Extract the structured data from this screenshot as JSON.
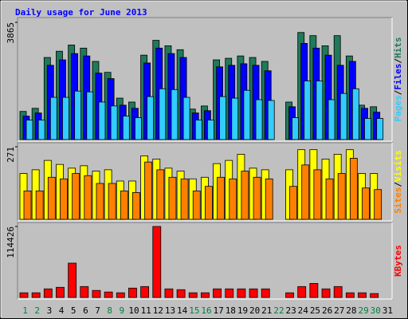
{
  "chart_data": [
    {
      "type": "bar",
      "title": "Daily usage for June 2013",
      "ylim": [
        0,
        3865
      ],
      "yticks": [
        3865
      ],
      "legend_separator": "/",
      "bar_width": 8,
      "bar_step": 4,
      "series": [
        {
          "name": "Hits",
          "color": "#1f7a5a",
          "values": [
            928,
            1031,
            2706,
            2912,
            3118,
            3015,
            2577,
            2216,
            1366,
            1237,
            2783,
            3272,
            3092,
            2963,
            1005,
            1108,
            2628,
            2680,
            2757,
            2706,
            2577,
            0,
            1237,
            3530,
            3427,
            3092,
            3427,
            2757,
            1134,
            1082,
            0
          ]
        },
        {
          "name": "Files",
          "color": "#0000ff",
          "values": [
            773,
            876,
            2448,
            2628,
            2835,
            2757,
            2190,
            2010,
            1134,
            1031,
            2525,
            3015,
            2835,
            2706,
            876,
            953,
            2397,
            2448,
            2500,
            2448,
            2268,
            0,
            1082,
            3170,
            3015,
            2783,
            2448,
            2577,
            1031,
            902,
            0
          ]
        },
        {
          "name": "Pages",
          "color": "#33ccff",
          "values": [
            644,
            644,
            1392,
            1392,
            1598,
            1572,
            1237,
            1108,
            773,
            722,
            1417,
            1675,
            1649,
            1392,
            644,
            644,
            1417,
            1366,
            1624,
            1314,
            1289,
            0,
            722,
            1933,
            1933,
            1314,
            1520,
            1675,
            696,
            696,
            0
          ]
        }
      ]
    },
    {
      "type": "bar",
      "ylim": [
        0,
        271
      ],
      "yticks": [
        271
      ],
      "legend_separator": "/",
      "bar_width": 9,
      "bar_step": 5,
      "series": [
        {
          "name": "Visits",
          "color": "#ffff00",
          "values": [
            171,
            185,
            220,
            205,
            191,
            200,
            180,
            185,
            143,
            143,
            237,
            225,
            191,
            180,
            151,
            157,
            208,
            220,
            243,
            191,
            185,
            0,
            185,
            260,
            260,
            225,
            243,
            260,
            171,
            171,
            0
          ]
        },
        {
          "name": "Sites",
          "color": "#ff8000",
          "values": [
            106,
            106,
            157,
            151,
            171,
            163,
            134,
            134,
            106,
            100,
            214,
            185,
            157,
            151,
            106,
            123,
            157,
            151,
            180,
            157,
            151,
            0,
            123,
            203,
            185,
            151,
            171,
            228,
            117,
            111,
            0
          ]
        }
      ]
    },
    {
      "type": "bar",
      "ylim": [
        0,
        114426
      ],
      "yticks": [
        114426
      ],
      "bar_width": 10,
      "bar_step": 0,
      "series": [
        {
          "name": "KBytes",
          "color": "#ff0000",
          "values": [
            7542,
            7542,
            13827,
            16341,
            55314,
            17598,
            11313,
            8799,
            7542,
            15084,
            17598,
            114426,
            13827,
            12570,
            7542,
            7542,
            13827,
            13827,
            13827,
            13827,
            13827,
            0,
            7542,
            17598,
            22626,
            13827,
            17598,
            7542,
            7542,
            6285,
            0
          ]
        }
      ],
      "categories": [
        "1",
        "2",
        "3",
        "4",
        "5",
        "6",
        "7",
        "8",
        "9",
        "10",
        "11",
        "12",
        "13",
        "14",
        "15",
        "16",
        "17",
        "18",
        "19",
        "20",
        "21",
        "22",
        "23",
        "24",
        "25",
        "26",
        "27",
        "28",
        "29",
        "30",
        "31"
      ],
      "category_colors": [
        "#008040",
        "#008040",
        "#000000",
        "#000000",
        "#000000",
        "#000000",
        "#000000",
        "#008040",
        "#008040",
        "#000000",
        "#000000",
        "#000000",
        "#000000",
        "#000000",
        "#008040",
        "#008040",
        "#000000",
        "#000000",
        "#000000",
        "#000000",
        "#000000",
        "#008040",
        "#000000",
        "#000000",
        "#000000",
        "#000000",
        "#000000",
        "#000000",
        "#008040",
        "#008040",
        "#000000"
      ]
    }
  ]
}
